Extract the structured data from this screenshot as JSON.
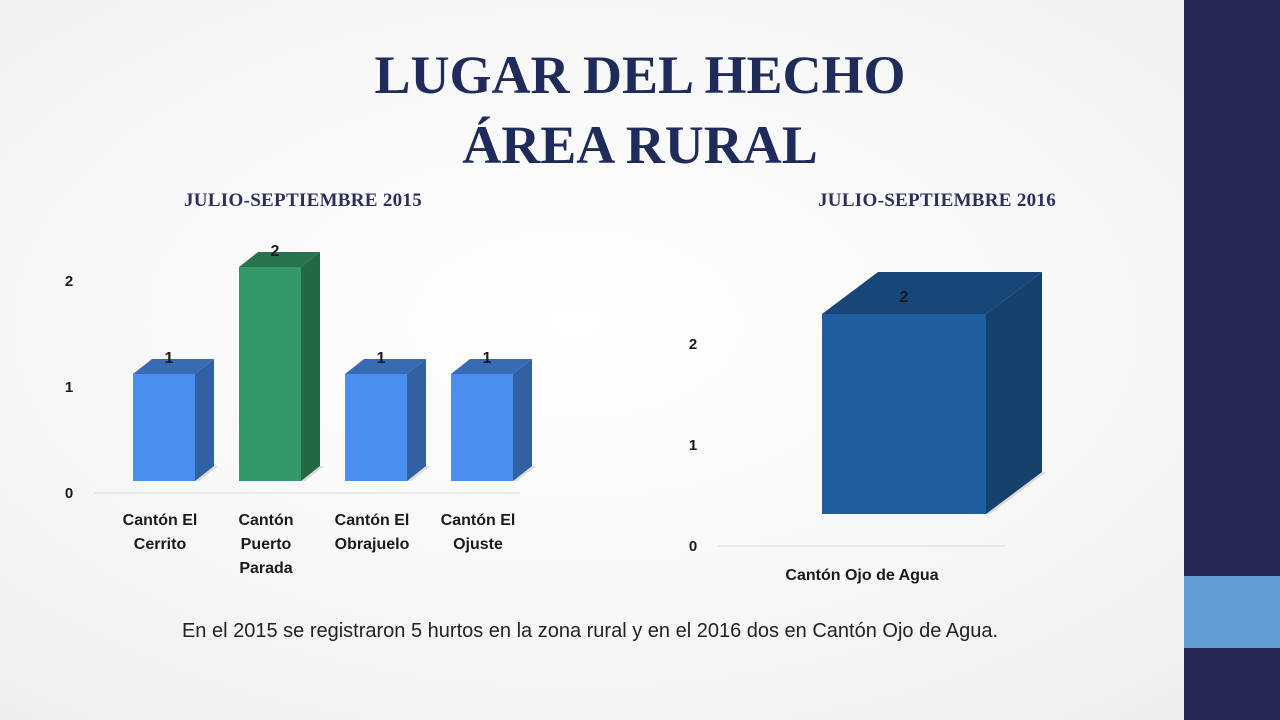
{
  "slide": {
    "title_line1": "LUGAR DEL HECHO",
    "title_line2": "ÁREA RURAL",
    "caption": "En el 2015 se registraron 5 hurtos en la zona rural y en el 2016 dos en Cantón Ojo de Agua.",
    "accent_colors": {
      "sidebar": "#272955",
      "sidebar_accent": "#5f9dd4"
    }
  },
  "chart_data": [
    {
      "type": "bar",
      "title": "JULIO-SEPTIEMBRE 2015",
      "categories": [
        [
          "Cantón El",
          "Cerrito"
        ],
        [
          "Cantón",
          "Puerto",
          "Parada"
        ],
        [
          "Cantón El",
          "Obrajuelo"
        ],
        [
          "Cantón El",
          "Ojuste"
        ]
      ],
      "values": [
        1,
        2,
        1,
        1
      ],
      "data_labels": [
        "1",
        "2",
        "1",
        "1"
      ],
      "yticks": [
        "0",
        "1",
        "2"
      ],
      "ylim": [
        0,
        2
      ],
      "colors": [
        "#4a8ef0",
        "#339966",
        "#4a8ef0",
        "#4a8ef0"
      ],
      "style": "3d",
      "grid": false,
      "legend": "none"
    },
    {
      "type": "bar",
      "title": "JULIO-SEPTIEMBRE 2016",
      "categories": [
        [
          "Cantón Ojo de Agua"
        ]
      ],
      "values": [
        2
      ],
      "data_labels": [
        "2"
      ],
      "yticks": [
        "0",
        "1",
        "2"
      ],
      "ylim": [
        0,
        2
      ],
      "colors": [
        "#1f5fa0"
      ],
      "style": "3d",
      "grid": false,
      "legend": "none"
    }
  ]
}
